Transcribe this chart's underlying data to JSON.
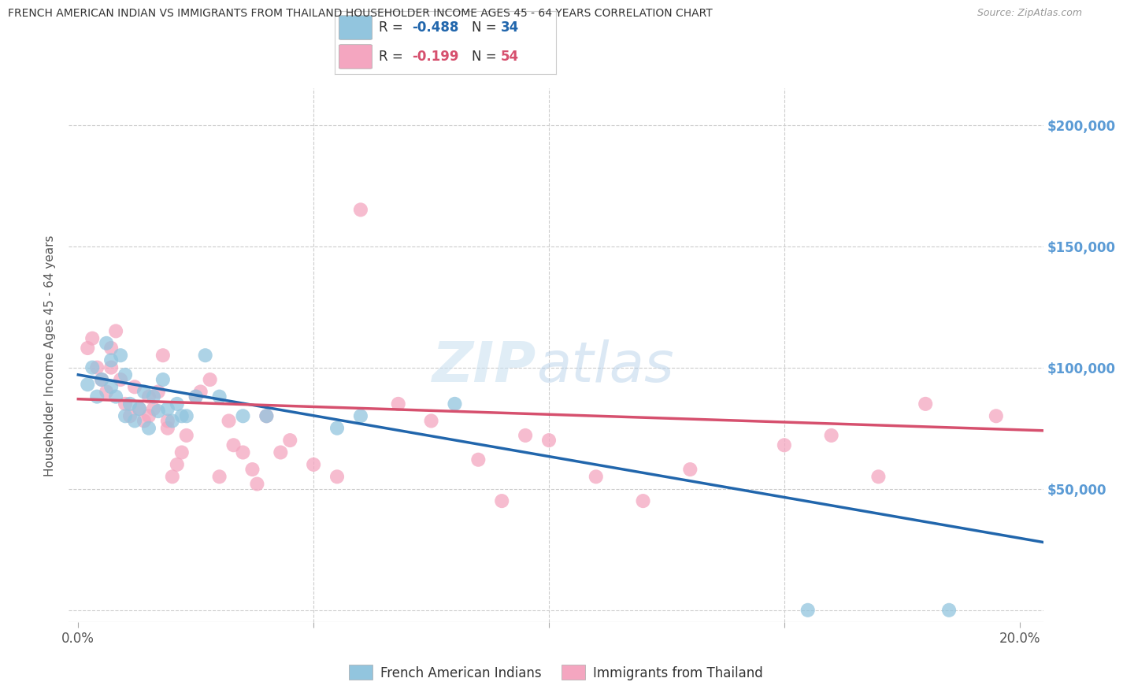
{
  "title": "FRENCH AMERICAN INDIAN VS IMMIGRANTS FROM THAILAND HOUSEHOLDER INCOME AGES 45 - 64 YEARS CORRELATION CHART",
  "source": "Source: ZipAtlas.com",
  "ylabel": "Householder Income Ages 45 - 64 years",
  "ytick_labels": [
    "",
    "$50,000",
    "$100,000",
    "$150,000",
    "$200,000"
  ],
  "ytick_vals": [
    0,
    50000,
    100000,
    150000,
    200000
  ],
  "ylim": [
    -5000,
    215000
  ],
  "xlim": [
    -0.002,
    0.205
  ],
  "watermark_zip": "ZIP",
  "watermark_atlas": "atlas",
  "legend_label_blue": "French American Indians",
  "legend_label_pink": "Immigrants from Thailand",
  "blue_color": "#92c5de",
  "pink_color": "#f4a6c0",
  "blue_line_color": "#2166ac",
  "pink_line_color": "#d6506e",
  "blue_r": "-0.488",
  "blue_n": "34",
  "pink_r": "-0.199",
  "pink_n": "54",
  "blue_scatter_x": [
    0.002,
    0.003,
    0.004,
    0.005,
    0.006,
    0.007,
    0.007,
    0.008,
    0.009,
    0.01,
    0.01,
    0.011,
    0.012,
    0.013,
    0.014,
    0.015,
    0.016,
    0.017,
    0.018,
    0.019,
    0.02,
    0.021,
    0.022,
    0.023,
    0.025,
    0.027,
    0.03,
    0.035,
    0.04,
    0.055,
    0.06,
    0.08,
    0.155,
    0.185
  ],
  "blue_scatter_y": [
    93000,
    100000,
    88000,
    95000,
    110000,
    103000,
    92000,
    88000,
    105000,
    97000,
    80000,
    85000,
    78000,
    83000,
    90000,
    75000,
    88000,
    82000,
    95000,
    83000,
    78000,
    85000,
    80000,
    80000,
    88000,
    105000,
    88000,
    80000,
    80000,
    75000,
    80000,
    85000,
    0,
    0
  ],
  "pink_scatter_x": [
    0.002,
    0.003,
    0.004,
    0.005,
    0.006,
    0.007,
    0.007,
    0.008,
    0.009,
    0.01,
    0.011,
    0.012,
    0.013,
    0.014,
    0.015,
    0.015,
    0.016,
    0.017,
    0.018,
    0.019,
    0.019,
    0.02,
    0.021,
    0.022,
    0.023,
    0.025,
    0.026,
    0.028,
    0.03,
    0.032,
    0.033,
    0.035,
    0.037,
    0.038,
    0.04,
    0.043,
    0.045,
    0.05,
    0.055,
    0.06,
    0.068,
    0.075,
    0.085,
    0.09,
    0.095,
    0.1,
    0.11,
    0.12,
    0.13,
    0.15,
    0.16,
    0.17,
    0.18,
    0.195
  ],
  "pink_scatter_y": [
    108000,
    112000,
    100000,
    95000,
    90000,
    100000,
    108000,
    115000,
    95000,
    85000,
    80000,
    92000,
    83000,
    78000,
    80000,
    88000,
    83000,
    90000,
    105000,
    78000,
    75000,
    55000,
    60000,
    65000,
    72000,
    88000,
    90000,
    95000,
    55000,
    78000,
    68000,
    65000,
    58000,
    52000,
    80000,
    65000,
    70000,
    60000,
    55000,
    165000,
    85000,
    78000,
    62000,
    45000,
    72000,
    70000,
    55000,
    45000,
    58000,
    68000,
    72000,
    55000,
    85000,
    80000
  ],
  "blue_line_x0": 0.0,
  "blue_line_y0": 97000,
  "blue_line_x1": 0.205,
  "blue_line_y1": 28000,
  "pink_line_x0": 0.0,
  "pink_line_y0": 87000,
  "pink_line_x1": 0.205,
  "pink_line_y1": 74000,
  "background_color": "#ffffff",
  "grid_color": "#cccccc",
  "title_color": "#333333",
  "right_ytick_color": "#5b9bd5"
}
